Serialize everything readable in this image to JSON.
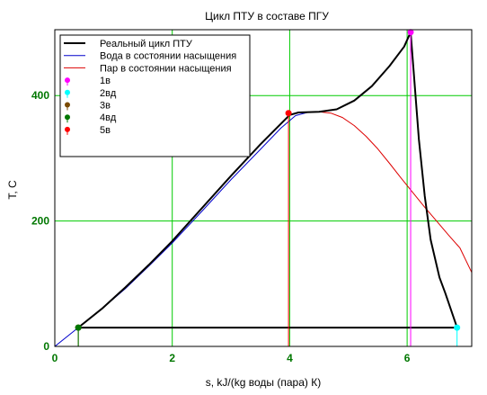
{
  "chart_data": {
    "type": "line",
    "title": "Цикл ПТУ в составе ПГУ",
    "xlabel": "s, kJ/(kg воды (пара) К)",
    "ylabel": "T, C",
    "xlim": [
      0,
      7.1
    ],
    "ylim": [
      0,
      505
    ],
    "x_ticks": [
      0,
      2,
      4,
      6
    ],
    "y_ticks": [
      0,
      200,
      400
    ],
    "grid": true,
    "grid_color": "#00cc00",
    "tick_label_color": "#007700",
    "legend_position": "top-left",
    "series": [
      {
        "name": "Реальный цикл ПТУ",
        "color": "#000000",
        "kind": "line",
        "points": [
          [
            0.4,
            30
          ],
          [
            0.8,
            60
          ],
          [
            1.2,
            94
          ],
          [
            1.6,
            130
          ],
          [
            2.0,
            168
          ],
          [
            2.5,
            220
          ],
          [
            3.0,
            272
          ],
          [
            3.5,
            322
          ],
          [
            3.85,
            355
          ],
          [
            4.0,
            369
          ],
          [
            4.15,
            373
          ],
          [
            4.5,
            374
          ],
          [
            4.8,
            378
          ],
          [
            5.1,
            392
          ],
          [
            5.4,
            415
          ],
          [
            5.7,
            447
          ],
          [
            5.95,
            478
          ],
          [
            6.06,
            501
          ],
          [
            6.11,
            440
          ],
          [
            6.2,
            330
          ],
          [
            6.3,
            240
          ],
          [
            6.4,
            170
          ],
          [
            6.55,
            110
          ],
          [
            6.65,
            85
          ],
          [
            6.85,
            30
          ],
          [
            0.4,
            30
          ]
        ]
      },
      {
        "name": "Вода в состоянии насыщения",
        "color": "#0000cc",
        "kind": "line",
        "points": [
          [
            0.0,
            0
          ],
          [
            0.4,
            30
          ],
          [
            0.8,
            60
          ],
          [
            1.2,
            92
          ],
          [
            1.6,
            128
          ],
          [
            2.0,
            165
          ],
          [
            2.5,
            215
          ],
          [
            3.0,
            266
          ],
          [
            3.5,
            314
          ],
          [
            3.85,
            348
          ],
          [
            4.1,
            368
          ],
          [
            4.3,
            373
          ],
          [
            4.5,
            374
          ]
        ]
      },
      {
        "name": "Пар в состоянии насыщения",
        "color": "#dd0000",
        "kind": "line",
        "points": [
          [
            4.5,
            374
          ],
          [
            4.7,
            372
          ],
          [
            4.9,
            365
          ],
          [
            5.1,
            352
          ],
          [
            5.3,
            335
          ],
          [
            5.5,
            315
          ],
          [
            5.7,
            292
          ],
          [
            5.9,
            268
          ],
          [
            6.1,
            245
          ],
          [
            6.3,
            222
          ],
          [
            6.5,
            200
          ],
          [
            6.7,
            178
          ],
          [
            6.9,
            157
          ],
          [
            7.1,
            118
          ]
        ]
      },
      {
        "name": "1в",
        "color": "#ff00ff",
        "kind": "marker",
        "points": [
          [
            6.06,
            501
          ]
        ]
      },
      {
        "name": "2вд",
        "color": "#00ffff",
        "kind": "marker",
        "points": [
          [
            6.85,
            30
          ]
        ]
      },
      {
        "name": "3в",
        "color": "#7a4a00",
        "kind": "marker",
        "points": [
          [
            0.4,
            30
          ]
        ]
      },
      {
        "name": "4вд",
        "color": "#007700",
        "kind": "marker",
        "points": [
          [
            0.4,
            30
          ]
        ]
      },
      {
        "name": "5в",
        "color": "#ff0000",
        "kind": "marker",
        "points": [
          [
            3.98,
            372
          ]
        ]
      }
    ]
  }
}
